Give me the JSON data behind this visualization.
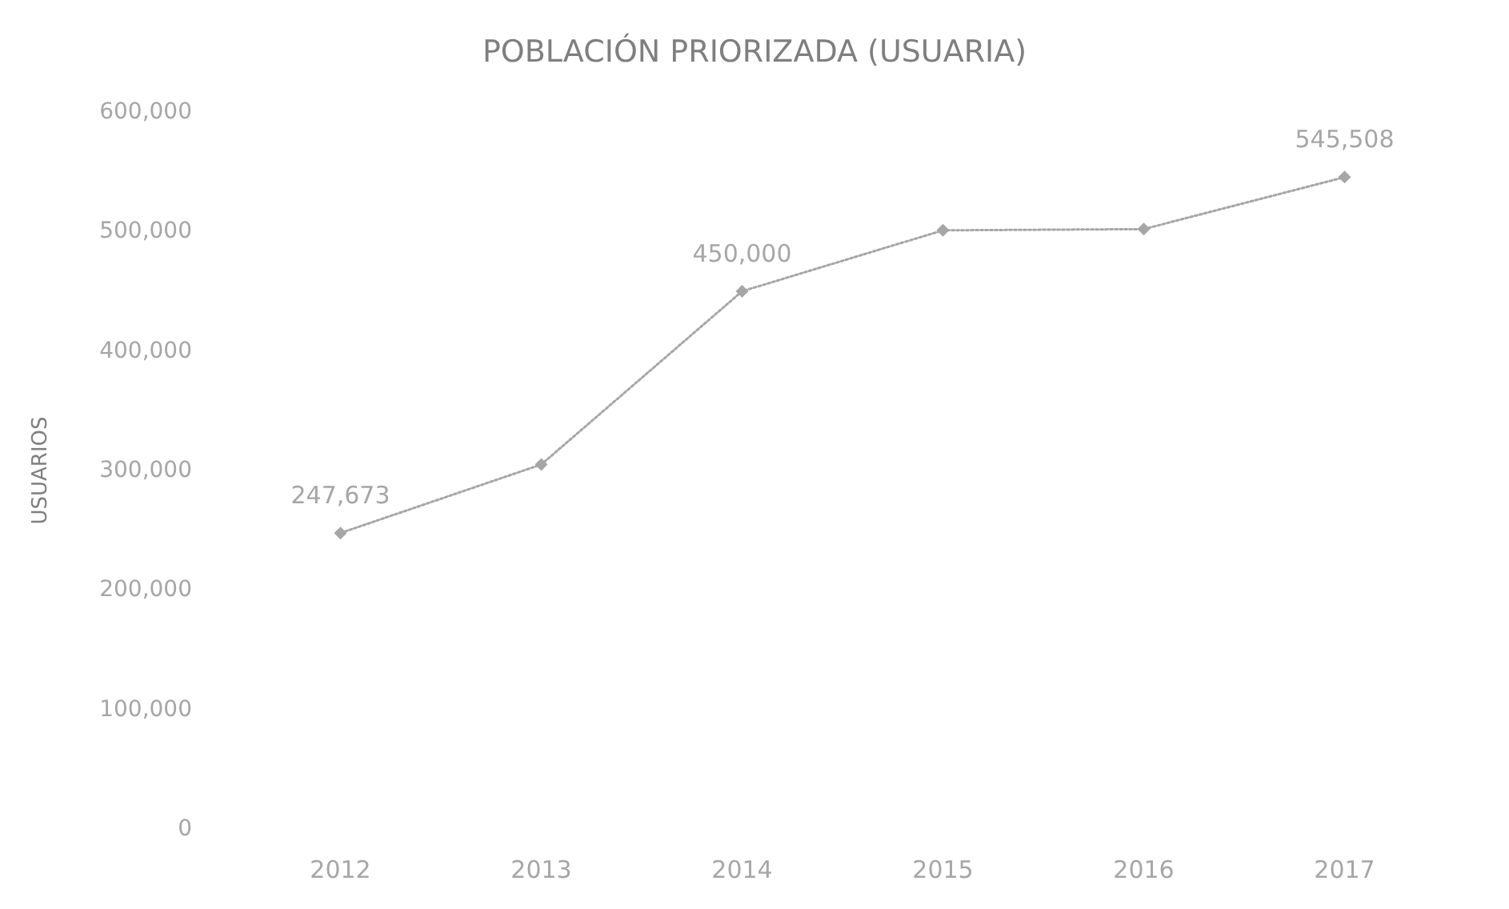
{
  "chart_data": {
    "type": "line",
    "title": "POBLACIÓN PRIORIZADA (USUARIA)",
    "ylabel": "USUARIOS",
    "categories": [
      "2012",
      "2013",
      "2014",
      "2015",
      "2016",
      "2017"
    ],
    "series": [
      {
        "color": "#a6a6a6",
        "values": [
          247673,
          305000,
          450000,
          501000,
          502000,
          545508
        ],
        "value_labels": [
          "247,673",
          null,
          "450,000",
          null,
          null,
          "545,508"
        ]
      }
    ],
    "ylim": [
      0,
      600000
    ],
    "yticks": [
      {
        "value": 0,
        "label": "0"
      },
      {
        "value": 100000,
        "label": "100,000"
      },
      {
        "value": 200000,
        "label": "200,000"
      },
      {
        "value": 300000,
        "label": "300,000"
      },
      {
        "value": 400000,
        "label": "400,000"
      },
      {
        "value": 500000,
        "label": "500,000"
      },
      {
        "value": 600000,
        "label": "600,000"
      }
    ],
    "grid": false,
    "marker": "diamond",
    "line_style": "dotted"
  }
}
